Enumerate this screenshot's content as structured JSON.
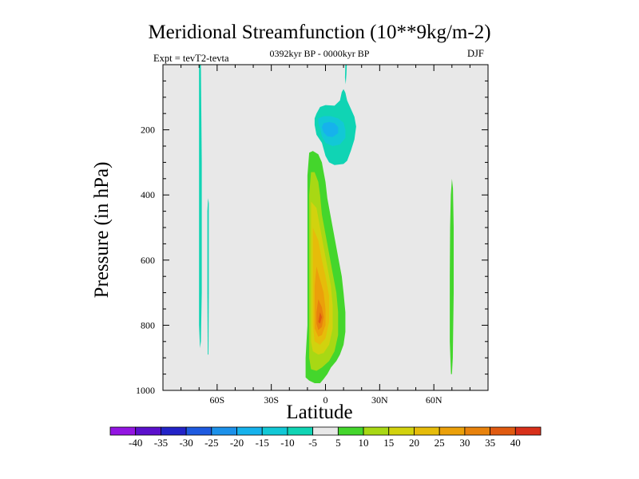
{
  "chart_data": {
    "type": "heatmap",
    "title": "Meridional Streamfunction (10**9kg/m-2)",
    "subtitle": "0392kyr BP - 0000kyr BP",
    "experiment_label": "Expt = tevT2-tevta",
    "season_label": "DJF",
    "xlabel": "Latitude",
    "ylabel": "Pressure (in hPa)",
    "xlim": [
      -90,
      90
    ],
    "ylim": [
      1000,
      0
    ],
    "background_color": "#e8e8e8",
    "x_ticks": [
      {
        "value": -60,
        "label": "60S"
      },
      {
        "value": -30,
        "label": "30S"
      },
      {
        "value": 0,
        "label": "0"
      },
      {
        "value": 30,
        "label": "30N"
      },
      {
        "value": 60,
        "label": "60N"
      }
    ],
    "y_ticks": [
      {
        "value": 200,
        "label": "200"
      },
      {
        "value": 400,
        "label": "400"
      },
      {
        "value": 600,
        "label": "600"
      },
      {
        "value": 800,
        "label": "800"
      },
      {
        "value": 1000,
        "label": "1000"
      }
    ],
    "colorbar": {
      "levels": [
        "-40",
        "-35",
        "-30",
        "-25",
        "-20",
        "-15",
        "-10",
        "-5",
        "5",
        "10",
        "15",
        "20",
        "25",
        "30",
        "35",
        "40"
      ],
      "colors": [
        "#9315e2",
        "#5b10cc",
        "#2323c8",
        "#1e5ae0",
        "#1c91ea",
        "#16b2ec",
        "#12c8d6",
        "#10d4b4",
        "#e8e8e8",
        "#44d62c",
        "#a8d814",
        "#d2d20e",
        "#e6bc0a",
        "#eba00a",
        "#e8820c",
        "#e05a10",
        "#d8301a"
      ]
    },
    "regions": [
      {
        "name": "upper-negative-cell",
        "value_range": [
          -10,
          -5
        ],
        "color": "#10d4b4",
        "points": [
          [
            -5,
            150
          ],
          [
            -3,
            130
          ],
          [
            0,
            124
          ],
          [
            5,
            126
          ],
          [
            8,
            110
          ],
          [
            9,
            84
          ],
          [
            10,
            75
          ],
          [
            11,
            86
          ],
          [
            12,
            110
          ],
          [
            14,
            135
          ],
          [
            16,
            160
          ],
          [
            17,
            190
          ],
          [
            16,
            230
          ],
          [
            14,
            265
          ],
          [
            12,
            295
          ],
          [
            10,
            305
          ],
          [
            5,
            308
          ],
          [
            2,
            300
          ],
          [
            0,
            280
          ],
          [
            -2,
            240
          ],
          [
            -5,
            215
          ],
          [
            -6,
            185
          ],
          [
            -6,
            165
          ]
        ]
      },
      {
        "name": "upper-negative-core",
        "value_range": [
          -15,
          -10
        ],
        "color": "#12c8d6",
        "points": [
          [
            -4,
            165
          ],
          [
            -1,
            158
          ],
          [
            3,
            158
          ],
          [
            7,
            165
          ],
          [
            10,
            178
          ],
          [
            11,
            200
          ],
          [
            11,
            225
          ],
          [
            8,
            245
          ],
          [
            4,
            250
          ],
          [
            0,
            240
          ],
          [
            -2,
            220
          ],
          [
            -3,
            195
          ],
          [
            -4,
            178
          ]
        ]
      },
      {
        "name": "upper-negative-inner",
        "value_range": [
          -20,
          -15
        ],
        "color": "#16b2ec",
        "points": [
          [
            -1,
            180
          ],
          [
            2,
            176
          ],
          [
            5,
            180
          ],
          [
            7,
            192
          ],
          [
            7,
            210
          ],
          [
            4,
            222
          ],
          [
            1,
            220
          ],
          [
            -1,
            208
          ],
          [
            -2,
            192
          ]
        ]
      },
      {
        "name": "lower-positive-cell",
        "value_range": [
          5,
          10
        ],
        "color": "#44d62c",
        "points": [
          [
            -9,
            270
          ],
          [
            -7,
            265
          ],
          [
            -4,
            275
          ],
          [
            -2,
            300
          ],
          [
            -1,
            330
          ],
          [
            0,
            360
          ],
          [
            1,
            410
          ],
          [
            3,
            470
          ],
          [
            5,
            530
          ],
          [
            7,
            590
          ],
          [
            9,
            650
          ],
          [
            10,
            700
          ],
          [
            11,
            760
          ],
          [
            11,
            820
          ],
          [
            10,
            860
          ],
          [
            8,
            890
          ],
          [
            6,
            910
          ],
          [
            3,
            930
          ],
          [
            1,
            950
          ],
          [
            -1,
            965
          ],
          [
            -3,
            978
          ],
          [
            -6,
            978
          ],
          [
            -9,
            970
          ],
          [
            -11,
            960
          ],
          [
            -11,
            900
          ],
          [
            -10,
            800
          ],
          [
            -10,
            700
          ],
          [
            -10,
            600
          ],
          [
            -10,
            500
          ],
          [
            -10,
            420
          ],
          [
            -10,
            340
          ]
        ]
      },
      {
        "name": "lower-positive-10",
        "value_range": [
          10,
          15
        ],
        "color": "#a8d814",
        "points": [
          [
            -8,
            330
          ],
          [
            -6,
            330
          ],
          [
            -4,
            360
          ],
          [
            -3,
            400
          ],
          [
            -2,
            460
          ],
          [
            0,
            520
          ],
          [
            2,
            580
          ],
          [
            4,
            640
          ],
          [
            6,
            700
          ],
          [
            7,
            760
          ],
          [
            7,
            830
          ],
          [
            5,
            880
          ],
          [
            2,
            910
          ],
          [
            -2,
            930
          ],
          [
            -5,
            940
          ],
          [
            -8,
            935
          ],
          [
            -9,
            900
          ],
          [
            -9,
            800
          ],
          [
            -9,
            700
          ],
          [
            -9,
            600
          ],
          [
            -9,
            500
          ],
          [
            -9,
            400
          ]
        ]
      },
      {
        "name": "lower-positive-15",
        "value_range": [
          15,
          20
        ],
        "color": "#d2d20e",
        "points": [
          [
            -8,
            420
          ],
          [
            -5,
            440
          ],
          [
            -3,
            500
          ],
          [
            -1,
            560
          ],
          [
            1,
            620
          ],
          [
            3,
            680
          ],
          [
            4,
            740
          ],
          [
            4,
            810
          ],
          [
            2,
            860
          ],
          [
            -1,
            885
          ],
          [
            -4,
            890
          ],
          [
            -7,
            880
          ],
          [
            -8,
            850
          ],
          [
            -8,
            760
          ],
          [
            -8,
            660
          ],
          [
            -8,
            560
          ],
          [
            -8,
            480
          ]
        ]
      },
      {
        "name": "lower-positive-20",
        "value_range": [
          20,
          25
        ],
        "color": "#e6bc0a",
        "points": [
          [
            -7,
            500
          ],
          [
            -4,
            540
          ],
          [
            -2,
            600
          ],
          [
            0,
            650
          ],
          [
            2,
            710
          ],
          [
            2,
            790
          ],
          [
            0,
            840
          ],
          [
            -3,
            860
          ],
          [
            -6,
            850
          ],
          [
            -7,
            800
          ],
          [
            -7,
            700
          ],
          [
            -7,
            600
          ]
        ]
      },
      {
        "name": "lower-positive-25",
        "value_range": [
          25,
          30
        ],
        "color": "#eba00a",
        "points": [
          [
            -5,
            620
          ],
          [
            -3,
            660
          ],
          [
            -1,
            700
          ],
          [
            0,
            750
          ],
          [
            0,
            800
          ],
          [
            -2,
            830
          ],
          [
            -4,
            835
          ],
          [
            -6,
            810
          ],
          [
            -6,
            740
          ],
          [
            -6,
            680
          ]
        ]
      },
      {
        "name": "lower-positive-30",
        "value_range": [
          30,
          35
        ],
        "color": "#e8820c",
        "points": [
          [
            -4,
            720
          ],
          [
            -2,
            745
          ],
          [
            -1,
            775
          ],
          [
            -2,
            805
          ],
          [
            -4,
            815
          ],
          [
            -5,
            795
          ],
          [
            -5,
            760
          ]
        ]
      },
      {
        "name": "lower-positive-35",
        "value_range": [
          35,
          40
        ],
        "color": "#e05a10",
        "points": [
          [
            -3,
            760
          ],
          [
            -2,
            775
          ],
          [
            -3,
            795
          ],
          [
            -4,
            790
          ]
        ]
      },
      {
        "name": "southern-negative-strip",
        "value_range": [
          -10,
          -5
        ],
        "color": "#10d4b4",
        "points": [
          [
            -70,
            0
          ],
          [
            -69,
            0
          ],
          [
            -68.5,
            300
          ],
          [
            -68.5,
            500
          ],
          [
            -68.5,
            700
          ],
          [
            -69,
            850
          ],
          [
            -69.5,
            870
          ],
          [
            -70,
            800
          ],
          [
            -70,
            600
          ],
          [
            -70,
            300
          ]
        ]
      },
      {
        "name": "southern-negative-strip-2",
        "value_range": [
          -10,
          -5
        ],
        "color": "#10d4b4",
        "points": [
          [
            -65,
            410
          ],
          [
            -64.6,
            425
          ],
          [
            -64.6,
            700
          ],
          [
            -64.8,
            890
          ],
          [
            -65.2,
            890
          ],
          [
            -65.4,
            700
          ],
          [
            -65.4,
            450
          ]
        ]
      },
      {
        "name": "northern-positive-strip",
        "value_range": [
          5,
          10
        ],
        "color": "#44d62c",
        "points": [
          [
            70,
            350
          ],
          [
            70.6,
            380
          ],
          [
            71,
            500
          ],
          [
            71,
            700
          ],
          [
            70.5,
            900
          ],
          [
            70,
            950
          ],
          [
            69.5,
            950
          ],
          [
            68.8,
            850
          ],
          [
            68.8,
            650
          ],
          [
            69,
            500
          ],
          [
            69.4,
            400
          ]
        ]
      },
      {
        "name": "tropopause-wisp",
        "value_range": [
          -10,
          -5
        ],
        "color": "#10d4b4",
        "points": [
          [
            11,
            0
          ],
          [
            11.8,
            0
          ],
          [
            11.6,
            30
          ],
          [
            11.2,
            60
          ],
          [
            10.8,
            40
          ]
        ]
      }
    ]
  }
}
